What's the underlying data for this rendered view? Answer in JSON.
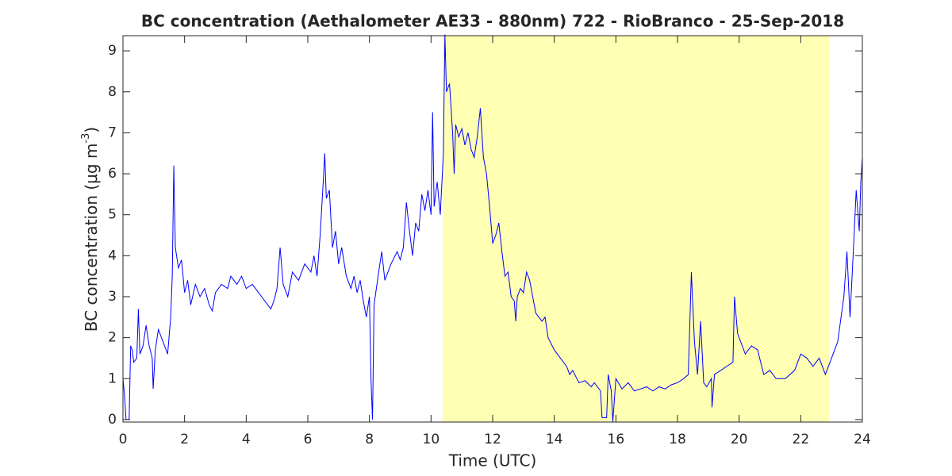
{
  "chart_data": {
    "type": "line",
    "title": "BC concentration (Aethalometer AE33 - 880nm) 722 - RioBranco - 25-Sep-2018",
    "xlabel": "Time (UTC)",
    "ylabel": {
      "text": "BC concentration (μg m",
      "superscript": "-3",
      "suffix": ")"
    },
    "shade": {
      "x": [
        10.38,
        22.92
      ],
      "color": "#ffffb4"
    },
    "xlim": [
      0,
      24
    ],
    "xticks": [
      0,
      2,
      4,
      6,
      8,
      10,
      12,
      14,
      16,
      18,
      20,
      22,
      24
    ],
    "ylim": [
      -0.06,
      9.37
    ],
    "yticks": [
      0,
      1,
      2,
      3,
      4,
      5,
      6,
      7,
      8,
      9
    ],
    "series": [
      {
        "color": "#0000ff",
        "x": [
          0,
          0.05,
          0.1,
          0.2,
          0.25,
          0.3,
          0.35,
          0.45,
          0.5,
          0.55,
          0.65,
          0.75,
          0.85,
          0.95,
          0.98,
          1.05,
          1.15,
          1.3,
          1.45,
          1.55,
          1.6,
          1.65,
          1.7,
          1.8,
          1.9,
          2.0,
          2.1,
          2.2,
          2.35,
          2.5,
          2.65,
          2.8,
          2.9,
          3.0,
          3.2,
          3.4,
          3.5,
          3.7,
          3.85,
          4.0,
          4.2,
          4.4,
          4.6,
          4.8,
          4.9,
          5.0,
          5.1,
          5.2,
          5.35,
          5.5,
          5.7,
          5.9,
          6.1,
          6.2,
          6.3,
          6.4,
          6.5,
          6.55,
          6.6,
          6.7,
          6.8,
          6.9,
          7.0,
          7.1,
          7.25,
          7.4,
          7.5,
          7.6,
          7.7,
          7.8,
          7.9,
          8.0,
          8.05,
          8.1,
          8.15,
          8.3,
          8.4,
          8.5,
          8.7,
          8.9,
          9.0,
          9.1,
          9.2,
          9.3,
          9.4,
          9.5,
          9.6,
          9.7,
          9.8,
          9.9,
          10.0,
          10.05,
          10.1,
          10.2,
          10.3,
          10.4,
          10.45,
          10.5,
          10.6,
          10.7,
          10.75,
          10.8,
          10.9,
          11.0,
          11.1,
          11.2,
          11.3,
          11.4,
          11.5,
          11.6,
          11.7,
          11.8,
          11.9,
          12.0,
          12.1,
          12.2,
          12.3,
          12.4,
          12.5,
          12.6,
          12.7,
          12.75,
          12.8,
          12.9,
          13.0,
          13.1,
          13.2,
          13.3,
          13.4,
          13.5,
          13.6,
          13.7,
          13.8,
          14.0,
          14.2,
          14.4,
          14.5,
          14.6,
          14.8,
          15.0,
          15.2,
          15.3,
          15.5,
          15.55,
          15.7,
          15.75,
          15.85,
          15.9,
          16.0,
          16.2,
          16.4,
          16.6,
          16.8,
          17.0,
          17.2,
          17.4,
          17.6,
          17.8,
          18.0,
          18.2,
          18.35,
          18.45,
          18.55,
          18.65,
          18.75,
          18.85,
          18.95,
          19.1,
          19.12,
          19.2,
          19.4,
          19.6,
          19.8,
          19.85,
          19.95,
          20.2,
          20.4,
          20.6,
          20.8,
          21.0,
          21.2,
          21.5,
          21.8,
          22.0,
          22.2,
          22.4,
          22.6,
          22.8,
          23.0,
          23.2,
          23.4,
          23.5,
          23.6,
          23.7,
          23.8,
          23.9,
          23.95,
          24.0
        ],
        "values": [
          1.0,
          0.6,
          0,
          0,
          1.8,
          1.7,
          1.4,
          1.5,
          2.7,
          1.6,
          1.8,
          2.3,
          1.8,
          1.5,
          0.75,
          1.7,
          2.2,
          1.9,
          1.6,
          2.5,
          3.5,
          6.2,
          4.2,
          3.7,
          3.9,
          3.1,
          3.4,
          2.8,
          3.3,
          3.0,
          3.2,
          2.8,
          2.65,
          3.1,
          3.3,
          3.2,
          3.5,
          3.3,
          3.5,
          3.2,
          3.3,
          3.1,
          2.9,
          2.7,
          2.9,
          3.2,
          4.2,
          3.3,
          3.0,
          3.6,
          3.4,
          3.8,
          3.6,
          4.0,
          3.5,
          4.5,
          5.8,
          6.5,
          5.4,
          5.6,
          4.2,
          4.6,
          3.8,
          4.2,
          3.5,
          3.2,
          3.5,
          3.1,
          3.4,
          2.9,
          2.5,
          3.0,
          1.0,
          0,
          2.8,
          3.6,
          4.1,
          3.4,
          3.8,
          4.1,
          3.9,
          4.2,
          5.3,
          4.6,
          4.0,
          4.8,
          4.6,
          5.5,
          5.1,
          5.6,
          5.0,
          7.5,
          5.2,
          5.8,
          5.0,
          6.5,
          9.4,
          8.0,
          8.2,
          7.0,
          6.0,
          7.2,
          6.9,
          7.1,
          6.7,
          7.0,
          6.6,
          6.4,
          6.9,
          7.6,
          6.4,
          6.0,
          5.2,
          4.3,
          4.5,
          4.8,
          4.1,
          3.5,
          3.6,
          3.0,
          2.9,
          2.4,
          3.0,
          3.2,
          3.1,
          3.6,
          3.4,
          3.0,
          2.6,
          2.5,
          2.4,
          2.5,
          2.0,
          1.7,
          1.5,
          1.3,
          1.1,
          1.2,
          0.9,
          0.95,
          0.8,
          0.9,
          0.7,
          0.05,
          0.05,
          1.1,
          0.7,
          -0.05,
          1.0,
          0.75,
          0.9,
          0.7,
          0.75,
          0.8,
          0.7,
          0.8,
          0.75,
          0.85,
          0.9,
          1.0,
          1.1,
          3.6,
          1.9,
          1.1,
          2.4,
          0.9,
          0.8,
          1.0,
          0.3,
          1.1,
          1.2,
          1.3,
          1.4,
          3.0,
          2.1,
          1.6,
          1.8,
          1.7,
          1.1,
          1.2,
          1.0,
          1.0,
          1.2,
          1.6,
          1.5,
          1.3,
          1.5,
          1.1,
          1.5,
          1.9,
          3.0,
          4.1,
          2.5,
          4.0,
          5.6,
          4.6,
          5.8,
          6.4
        ]
      }
    ]
  }
}
